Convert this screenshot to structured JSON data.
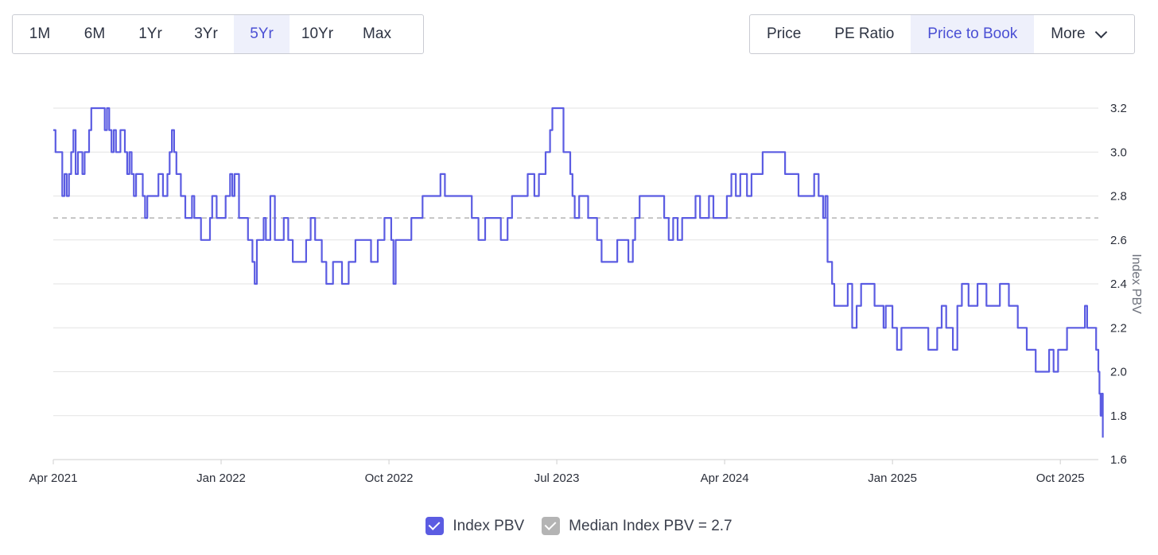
{
  "range_buttons": [
    "1M",
    "6M",
    "1Yr",
    "3Yr",
    "5Yr",
    "10Yr",
    "Max"
  ],
  "active_range": "5Yr",
  "metric_buttons": [
    "Price",
    "PE Ratio",
    "Price to Book"
  ],
  "active_metric": "Price to Book",
  "more_label": "More",
  "colors": {
    "series": "#5b5ce2",
    "median": "#b4b4b4",
    "grid": "#e3e3e3",
    "active_bg": "#eef0fb",
    "active_text": "#4a4fd4"
  },
  "legend": {
    "series_label": "Index PBV",
    "median_label": "Median Index PBV = 2.7"
  },
  "chart_data": {
    "type": "line",
    "title": "",
    "ylabel": "Index PBV",
    "xlabel": "",
    "ylim": [
      1.6,
      3.2
    ],
    "yticks": [
      "1.6",
      "1.8",
      "2.0",
      "2.2",
      "2.4",
      "2.6",
      "2.8",
      "3.0",
      "3.2"
    ],
    "xlim": [
      2021.25,
      2025.92
    ],
    "xticks": [
      {
        "label": "Apr 2021",
        "value": 2021.25
      },
      {
        "label": "Jan 2022",
        "value": 2022.0
      },
      {
        "label": "Oct 2022",
        "value": 2022.75
      },
      {
        "label": "Jul 2023",
        "value": 2023.5
      },
      {
        "label": "Apr 2024",
        "value": 2024.25
      },
      {
        "label": "Jan 2025",
        "value": 2025.0
      },
      {
        "label": "Oct 2025",
        "value": 2025.75
      }
    ],
    "median": 2.7,
    "series": [
      {
        "name": "Index PBV",
        "points": [
          [
            2021.25,
            3.1
          ],
          [
            2021.26,
            3.0
          ],
          [
            2021.28,
            3.0
          ],
          [
            2021.29,
            2.8
          ],
          [
            2021.3,
            2.9
          ],
          [
            2021.31,
            2.8
          ],
          [
            2021.32,
            2.9
          ],
          [
            2021.33,
            3.0
          ],
          [
            2021.34,
            3.1
          ],
          [
            2021.35,
            2.9
          ],
          [
            2021.36,
            3.0
          ],
          [
            2021.37,
            3.0
          ],
          [
            2021.38,
            2.9
          ],
          [
            2021.39,
            3.0
          ],
          [
            2021.4,
            3.0
          ],
          [
            2021.41,
            3.1
          ],
          [
            2021.42,
            3.2
          ],
          [
            2021.45,
            3.2
          ],
          [
            2021.46,
            3.2
          ],
          [
            2021.48,
            3.1
          ],
          [
            2021.49,
            3.2
          ],
          [
            2021.5,
            3.1
          ],
          [
            2021.51,
            3.0
          ],
          [
            2021.52,
            3.1
          ],
          [
            2021.53,
            3.0
          ],
          [
            2021.55,
            3.1
          ],
          [
            2021.57,
            3.0
          ],
          [
            2021.58,
            2.9
          ],
          [
            2021.59,
            3.0
          ],
          [
            2021.6,
            2.9
          ],
          [
            2021.61,
            2.8
          ],
          [
            2021.62,
            2.9
          ],
          [
            2021.64,
            2.9
          ],
          [
            2021.65,
            2.8
          ],
          [
            2021.66,
            2.7
          ],
          [
            2021.67,
            2.8
          ],
          [
            2021.7,
            2.8
          ],
          [
            2021.72,
            2.9
          ],
          [
            2021.74,
            2.8
          ],
          [
            2021.76,
            2.9
          ],
          [
            2021.77,
            3.0
          ],
          [
            2021.78,
            3.1
          ],
          [
            2021.79,
            3.0
          ],
          [
            2021.8,
            2.9
          ],
          [
            2021.81,
            2.9
          ],
          [
            2021.82,
            2.8
          ],
          [
            2021.84,
            2.7
          ],
          [
            2021.86,
            2.7
          ],
          [
            2021.87,
            2.8
          ],
          [
            2021.88,
            2.7
          ],
          [
            2021.9,
            2.7
          ],
          [
            2021.91,
            2.6
          ],
          [
            2021.94,
            2.6
          ],
          [
            2021.95,
            2.7
          ],
          [
            2021.96,
            2.8
          ],
          [
            2021.97,
            2.8
          ],
          [
            2021.98,
            2.7
          ],
          [
            2022.0,
            2.7
          ],
          [
            2022.02,
            2.8
          ],
          [
            2022.04,
            2.9
          ],
          [
            2022.05,
            2.8
          ],
          [
            2022.06,
            2.9
          ],
          [
            2022.08,
            2.7
          ],
          [
            2022.1,
            2.7
          ],
          [
            2022.12,
            2.6
          ],
          [
            2022.14,
            2.5
          ],
          [
            2022.15,
            2.4
          ],
          [
            2022.16,
            2.6
          ],
          [
            2022.18,
            2.6
          ],
          [
            2022.19,
            2.7
          ],
          [
            2022.2,
            2.6
          ],
          [
            2022.22,
            2.8
          ],
          [
            2022.24,
            2.6
          ],
          [
            2022.26,
            2.6
          ],
          [
            2022.28,
            2.7
          ],
          [
            2022.3,
            2.6
          ],
          [
            2022.32,
            2.5
          ],
          [
            2022.35,
            2.5
          ],
          [
            2022.38,
            2.6
          ],
          [
            2022.4,
            2.7
          ],
          [
            2022.42,
            2.6
          ],
          [
            2022.45,
            2.5
          ],
          [
            2022.47,
            2.4
          ],
          [
            2022.5,
            2.5
          ],
          [
            2022.54,
            2.4
          ],
          [
            2022.57,
            2.5
          ],
          [
            2022.6,
            2.6
          ],
          [
            2022.65,
            2.6
          ],
          [
            2022.67,
            2.5
          ],
          [
            2022.7,
            2.6
          ],
          [
            2022.73,
            2.7
          ],
          [
            2022.75,
            2.7
          ],
          [
            2022.76,
            2.6
          ],
          [
            2022.77,
            2.4
          ],
          [
            2022.78,
            2.6
          ],
          [
            2022.82,
            2.6
          ],
          [
            2022.85,
            2.7
          ],
          [
            2022.88,
            2.7
          ],
          [
            2022.9,
            2.8
          ],
          [
            2022.95,
            2.8
          ],
          [
            2022.98,
            2.9
          ],
          [
            2023.0,
            2.8
          ],
          [
            2023.05,
            2.8
          ],
          [
            2023.1,
            2.8
          ],
          [
            2023.12,
            2.7
          ],
          [
            2023.15,
            2.6
          ],
          [
            2023.18,
            2.7
          ],
          [
            2023.22,
            2.7
          ],
          [
            2023.25,
            2.6
          ],
          [
            2023.28,
            2.7
          ],
          [
            2023.3,
            2.8
          ],
          [
            2023.34,
            2.8
          ],
          [
            2023.37,
            2.9
          ],
          [
            2023.4,
            2.8
          ],
          [
            2023.42,
            2.9
          ],
          [
            2023.44,
            2.9
          ],
          [
            2023.45,
            3.0
          ],
          [
            2023.47,
            3.1
          ],
          [
            2023.48,
            3.2
          ],
          [
            2023.52,
            3.2
          ],
          [
            2023.53,
            3.0
          ],
          [
            2023.55,
            3.0
          ],
          [
            2023.56,
            2.9
          ],
          [
            2023.57,
            2.8
          ],
          [
            2023.58,
            2.7
          ],
          [
            2023.6,
            2.8
          ],
          [
            2023.62,
            2.8
          ],
          [
            2023.64,
            2.7
          ],
          [
            2023.66,
            2.7
          ],
          [
            2023.68,
            2.6
          ],
          [
            2023.7,
            2.5
          ],
          [
            2023.75,
            2.5
          ],
          [
            2023.77,
            2.6
          ],
          [
            2023.8,
            2.6
          ],
          [
            2023.82,
            2.5
          ],
          [
            2023.84,
            2.6
          ],
          [
            2023.85,
            2.7
          ],
          [
            2023.87,
            2.8
          ],
          [
            2023.92,
            2.8
          ],
          [
            2023.97,
            2.8
          ],
          [
            2023.98,
            2.7
          ],
          [
            2024.0,
            2.6
          ],
          [
            2024.02,
            2.7
          ],
          [
            2024.04,
            2.6
          ],
          [
            2024.06,
            2.7
          ],
          [
            2024.1,
            2.7
          ],
          [
            2024.12,
            2.8
          ],
          [
            2024.14,
            2.7
          ],
          [
            2024.16,
            2.7
          ],
          [
            2024.18,
            2.8
          ],
          [
            2024.2,
            2.7
          ],
          [
            2024.23,
            2.7
          ],
          [
            2024.25,
            2.7
          ],
          [
            2024.26,
            2.8
          ],
          [
            2024.28,
            2.9
          ],
          [
            2024.3,
            2.8
          ],
          [
            2024.32,
            2.9
          ],
          [
            2024.35,
            2.8
          ],
          [
            2024.37,
            2.9
          ],
          [
            2024.4,
            2.9
          ],
          [
            2024.42,
            3.0
          ],
          [
            2024.45,
            3.0
          ],
          [
            2024.5,
            3.0
          ],
          [
            2024.52,
            2.9
          ],
          [
            2024.55,
            2.9
          ],
          [
            2024.58,
            2.8
          ],
          [
            2024.62,
            2.8
          ],
          [
            2024.65,
            2.9
          ],
          [
            2024.67,
            2.8
          ],
          [
            2024.69,
            2.7
          ],
          [
            2024.7,
            2.8
          ],
          [
            2024.71,
            2.5
          ],
          [
            2024.73,
            2.4
          ],
          [
            2024.74,
            2.3
          ],
          [
            2024.78,
            2.3
          ],
          [
            2024.8,
            2.4
          ],
          [
            2024.82,
            2.2
          ],
          [
            2024.84,
            2.3
          ],
          [
            2024.86,
            2.4
          ],
          [
            2024.9,
            2.4
          ],
          [
            2024.92,
            2.3
          ],
          [
            2024.96,
            2.2
          ],
          [
            2024.97,
            2.3
          ],
          [
            2025.0,
            2.2
          ],
          [
            2025.02,
            2.1
          ],
          [
            2025.04,
            2.2
          ],
          [
            2025.06,
            2.2
          ],
          [
            2025.08,
            2.2
          ],
          [
            2025.12,
            2.2
          ],
          [
            2025.16,
            2.1
          ],
          [
            2025.2,
            2.2
          ],
          [
            2025.22,
            2.3
          ],
          [
            2025.24,
            2.2
          ],
          [
            2025.27,
            2.1
          ],
          [
            2025.29,
            2.3
          ],
          [
            2025.31,
            2.4
          ],
          [
            2025.34,
            2.3
          ],
          [
            2025.38,
            2.4
          ],
          [
            2025.42,
            2.3
          ],
          [
            2025.46,
            2.3
          ],
          [
            2025.48,
            2.4
          ],
          [
            2025.52,
            2.3
          ],
          [
            2025.56,
            2.2
          ],
          [
            2025.6,
            2.1
          ],
          [
            2025.64,
            2.0
          ],
          [
            2025.7,
            2.1
          ],
          [
            2025.72,
            2.0
          ],
          [
            2025.74,
            2.1
          ],
          [
            2025.78,
            2.2
          ],
          [
            2025.82,
            2.2
          ],
          [
            2025.85,
            2.2
          ],
          [
            2025.86,
            2.3
          ],
          [
            2025.87,
            2.2
          ],
          [
            2025.89,
            2.2
          ],
          [
            2025.91,
            2.1
          ],
          [
            2025.92,
            2.0
          ],
          [
            2025.925,
            1.9
          ],
          [
            2025.93,
            1.8
          ],
          [
            2025.935,
            1.9
          ],
          [
            2025.94,
            1.7
          ]
        ]
      }
    ]
  }
}
